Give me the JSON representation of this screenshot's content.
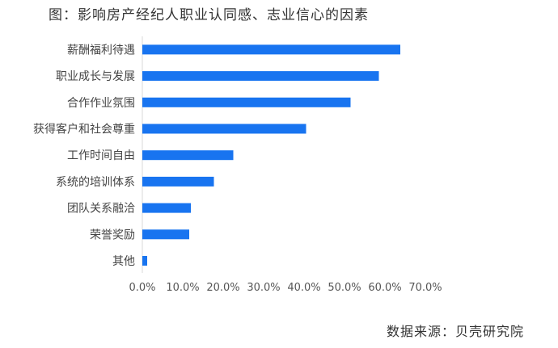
{
  "chart_data": {
    "type": "bar",
    "orientation": "horizontal",
    "title": "图：影响房产经纪人职业认同感、志业信心的因素",
    "categories": [
      "薪酬福利待遇",
      "职业成长与发展",
      "合作作业氛围",
      "获得客户和社会尊重",
      "工作时间自由",
      "系统的培训体系",
      "团队关系融洽",
      "荣誉奖励",
      "其他"
    ],
    "values": [
      0.638,
      0.585,
      0.515,
      0.405,
      0.225,
      0.177,
      0.12,
      0.116,
      0.012
    ],
    "xlim": [
      0,
      0.7
    ],
    "x_ticks": [
      "0.0%",
      "10.0%",
      "20.0%",
      "30.0%",
      "40.0%",
      "50.0%",
      "60.0%",
      "70.0%"
    ],
    "xlabel": "",
    "ylabel": "",
    "grid": false,
    "legend": "none",
    "bar_color": "#1874f0"
  },
  "source": "数据来源：贝壳研究院"
}
